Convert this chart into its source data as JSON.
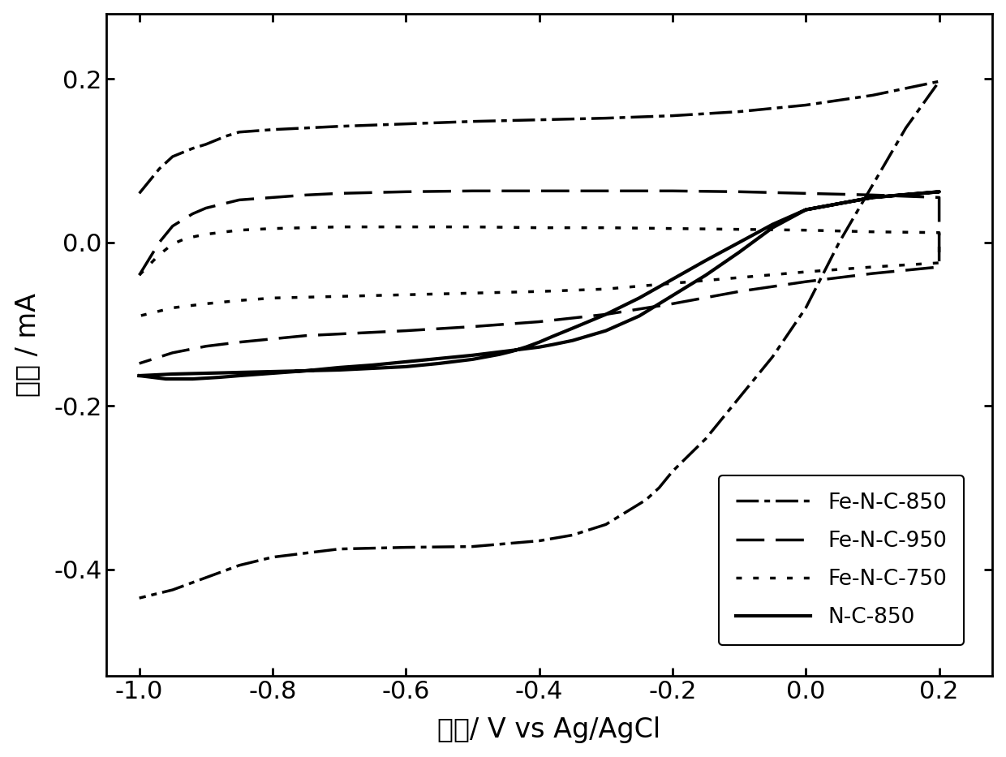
{
  "xlabel": "电势/ V vs Ag/AgCl",
  "ylabel": "电流 / mA",
  "xlim": [
    -1.05,
    0.28
  ],
  "ylim": [
    -0.53,
    0.28
  ],
  "xticks": [
    -1.0,
    -0.8,
    -0.6,
    -0.4,
    -0.2,
    0.0,
    0.2
  ],
  "yticks": [
    -0.4,
    -0.2,
    0.0,
    0.2
  ],
  "background_color": "#ffffff",
  "linewidth": 2.5,
  "fe_nc_850_top_x": [
    -1.0,
    -0.97,
    -0.95,
    -0.92,
    -0.9,
    -0.87,
    -0.85,
    -0.8,
    -0.75,
    -0.7,
    -0.6,
    -0.5,
    -0.4,
    -0.3,
    -0.2,
    -0.1,
    0.0,
    0.1,
    0.2
  ],
  "fe_nc_850_top_y": [
    0.06,
    0.09,
    0.105,
    0.115,
    0.12,
    0.13,
    0.135,
    0.138,
    0.14,
    0.142,
    0.145,
    0.148,
    0.15,
    0.152,
    0.155,
    0.16,
    0.168,
    0.18,
    0.197
  ],
  "fe_nc_850_bot_x": [
    0.2,
    0.15,
    0.1,
    0.05,
    0.0,
    -0.05,
    -0.1,
    -0.15,
    -0.2,
    -0.22,
    -0.24,
    -0.26,
    -0.28,
    -0.3,
    -0.35,
    -0.4,
    -0.5,
    -0.6,
    -0.7,
    -0.8,
    -0.85,
    -0.9,
    -0.95,
    -1.0
  ],
  "fe_nc_850_bot_y": [
    0.197,
    0.14,
    0.07,
    0.0,
    -0.08,
    -0.14,
    -0.19,
    -0.24,
    -0.28,
    -0.3,
    -0.315,
    -0.325,
    -0.335,
    -0.345,
    -0.358,
    -0.365,
    -0.372,
    -0.373,
    -0.375,
    -0.385,
    -0.395,
    -0.41,
    -0.425,
    -0.435
  ],
  "fe_nc_950_top_x": [
    -1.0,
    -0.97,
    -0.95,
    -0.92,
    -0.9,
    -0.87,
    -0.85,
    -0.8,
    -0.75,
    -0.7,
    -0.6,
    -0.5,
    -0.4,
    -0.3,
    -0.2,
    -0.1,
    0.0,
    0.1,
    0.2
  ],
  "fe_nc_950_top_y": [
    -0.04,
    0.0,
    0.02,
    0.035,
    0.042,
    0.048,
    0.052,
    0.055,
    0.058,
    0.06,
    0.062,
    0.063,
    0.063,
    0.063,
    0.063,
    0.062,
    0.06,
    0.058,
    0.055
  ],
  "fe_nc_950_bot_x": [
    0.2,
    0.1,
    0.0,
    -0.1,
    -0.2,
    -0.3,
    -0.4,
    -0.5,
    -0.6,
    -0.65,
    -0.7,
    -0.75,
    -0.8,
    -0.85,
    -0.9,
    -0.95,
    -1.0
  ],
  "fe_nc_950_bot_y": [
    -0.03,
    -0.038,
    -0.048,
    -0.06,
    -0.075,
    -0.088,
    -0.097,
    -0.103,
    -0.108,
    -0.11,
    -0.112,
    -0.114,
    -0.118,
    -0.122,
    -0.127,
    -0.135,
    -0.148
  ],
  "fe_nc_750_top_x": [
    -1.0,
    -0.97,
    -0.95,
    -0.93,
    -0.9,
    -0.87,
    -0.85,
    -0.8,
    -0.75,
    -0.7,
    -0.6,
    -0.5,
    -0.4,
    -0.3,
    -0.2,
    -0.1,
    0.0,
    0.1,
    0.2
  ],
  "fe_nc_750_top_y": [
    -0.04,
    -0.015,
    -0.002,
    0.005,
    0.01,
    0.013,
    0.015,
    0.017,
    0.018,
    0.019,
    0.019,
    0.019,
    0.018,
    0.018,
    0.017,
    0.016,
    0.015,
    0.013,
    0.012
  ],
  "fe_nc_750_bot_x": [
    0.2,
    0.1,
    0.0,
    -0.1,
    -0.2,
    -0.3,
    -0.4,
    -0.5,
    -0.6,
    -0.7,
    -0.8,
    -0.85,
    -0.9,
    -0.95,
    -1.0
  ],
  "fe_nc_750_bot_y": [
    -0.025,
    -0.03,
    -0.036,
    -0.043,
    -0.05,
    -0.057,
    -0.06,
    -0.062,
    -0.064,
    -0.066,
    -0.068,
    -0.071,
    -0.075,
    -0.08,
    -0.09
  ],
  "nc_850_fwd_x": [
    -1.0,
    -0.98,
    -0.96,
    -0.94,
    -0.92,
    -0.9,
    -0.88,
    -0.85,
    -0.8,
    -0.75,
    -0.7,
    -0.65,
    -0.6,
    -0.55,
    -0.5,
    -0.48,
    -0.46,
    -0.44,
    -0.42,
    -0.4,
    -0.38,
    -0.35,
    -0.3,
    -0.25,
    -0.2,
    -0.15,
    -0.1,
    -0.05,
    0.0,
    0.1,
    0.2
  ],
  "nc_850_fwd_y": [
    -0.163,
    -0.165,
    -0.167,
    -0.167,
    -0.167,
    -0.166,
    -0.165,
    -0.163,
    -0.16,
    -0.157,
    -0.153,
    -0.15,
    -0.146,
    -0.142,
    -0.138,
    -0.136,
    -0.134,
    -0.132,
    -0.13,
    -0.128,
    -0.125,
    -0.12,
    -0.108,
    -0.09,
    -0.065,
    -0.04,
    -0.012,
    0.018,
    0.04,
    0.055,
    0.062
  ],
  "nc_850_bwd_x": [
    0.2,
    0.1,
    0.0,
    -0.05,
    -0.1,
    -0.15,
    -0.2,
    -0.25,
    -0.3,
    -0.35,
    -0.38,
    -0.4,
    -0.42,
    -0.44,
    -0.46,
    -0.48,
    -0.5,
    -0.55,
    -0.6,
    -0.65,
    -0.7,
    -0.75,
    -0.8,
    -0.85,
    -0.9,
    -0.95,
    -1.0
  ],
  "nc_850_bwd_y": [
    0.062,
    0.055,
    0.04,
    0.022,
    0.0,
    -0.022,
    -0.045,
    -0.068,
    -0.088,
    -0.105,
    -0.115,
    -0.122,
    -0.128,
    -0.133,
    -0.137,
    -0.14,
    -0.143,
    -0.148,
    -0.152,
    -0.154,
    -0.156,
    -0.157,
    -0.158,
    -0.159,
    -0.16,
    -0.161,
    -0.163
  ]
}
